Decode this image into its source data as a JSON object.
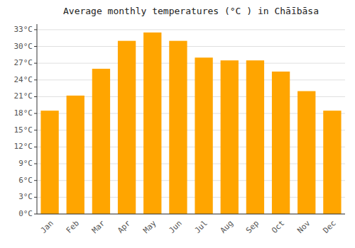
{
  "chart_data": {
    "type": "bar",
    "title": "Average monthly temperatures (°C ) in Chāībāsa",
    "categories": [
      "Jan",
      "Feb",
      "Mar",
      "Apr",
      "May",
      "Jun",
      "Jul",
      "Aug",
      "Sep",
      "Oct",
      "Nov",
      "Dec"
    ],
    "values": [
      18.5,
      21.2,
      26.0,
      31.0,
      32.5,
      31.0,
      28.0,
      27.5,
      27.5,
      25.5,
      22.0,
      18.5
    ],
    "color": "#FFA500",
    "ylim": [
      0,
      34
    ],
    "yticks": [
      {
        "value": 0,
        "label": "0°C"
      },
      {
        "value": 3,
        "label": "3°C"
      },
      {
        "value": 6,
        "label": "6°C"
      },
      {
        "value": 9,
        "label": "9°C"
      },
      {
        "value": 12,
        "label": "12°C"
      },
      {
        "value": 15,
        "label": "15°C"
      },
      {
        "value": 18,
        "label": "18°C"
      },
      {
        "value": 21,
        "label": "21°C"
      },
      {
        "value": 24,
        "label": "24°C"
      },
      {
        "value": 27,
        "label": "27°C"
      },
      {
        "value": 30,
        "label": "30°C"
      },
      {
        "value": 33,
        "label": "33°C"
      }
    ],
    "grid": true
  }
}
